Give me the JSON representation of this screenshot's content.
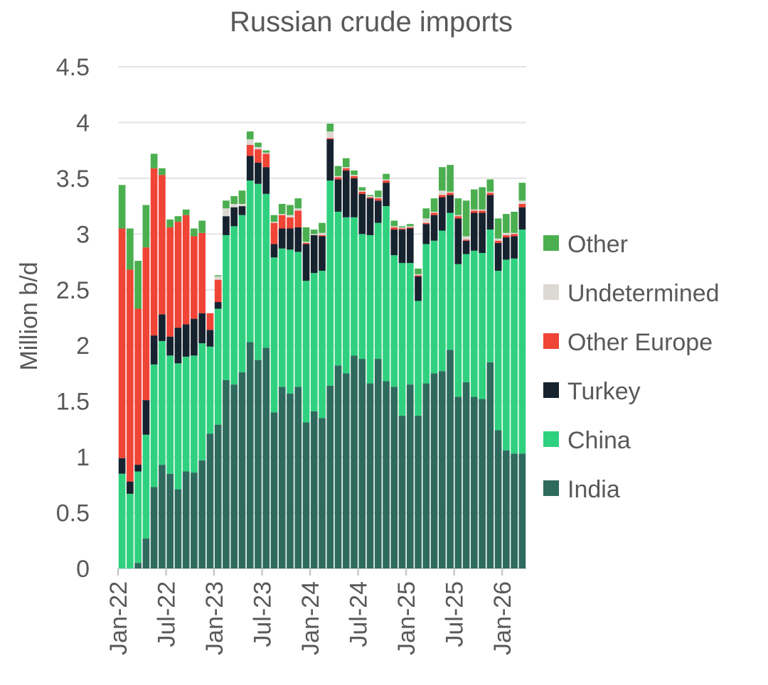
{
  "chart_data": {
    "type": "bar",
    "stacked": true,
    "title": "Russian crude imports",
    "ylabel": "Million b/d",
    "xlabel": "",
    "ylim": [
      0,
      4.5
    ],
    "yticks": [
      "0",
      "0.5",
      "1",
      "1.5",
      "2",
      "2.5",
      "3",
      "3.5",
      "4",
      "4.5"
    ],
    "grid": true,
    "legend_position": "right",
    "x_tick_labels": [
      {
        "index": 0,
        "label": "Jan-22"
      },
      {
        "index": 6,
        "label": "Jul-22"
      },
      {
        "index": 12,
        "label": "Jan-23"
      },
      {
        "index": 18,
        "label": "Jul-23"
      },
      {
        "index": 24,
        "label": "Jan-24"
      },
      {
        "index": 30,
        "label": "Jul-24"
      },
      {
        "index": 36,
        "label": "Jan-25"
      },
      {
        "index": 42,
        "label": "Jul-25"
      },
      {
        "index": 48,
        "label": "Jan-26"
      }
    ],
    "categories": [
      "Jan-22",
      "Feb-22",
      "Mar-22",
      "Apr-22",
      "May-22",
      "Jun-22",
      "Jul-22",
      "Aug-22",
      "Sep-22",
      "Oct-22",
      "Nov-22",
      "Dec-22",
      "Jan-23",
      "Feb-23",
      "Mar-23",
      "Apr-23",
      "May-23",
      "Jun-23",
      "Jul-23",
      "Aug-23",
      "Sep-23",
      "Oct-23",
      "Nov-23",
      "Dec-23",
      "Jan-24",
      "Feb-24",
      "Mar-24",
      "Apr-24",
      "May-24",
      "Jun-24",
      "Jul-24",
      "Aug-24",
      "Sep-24",
      "Oct-24",
      "Nov-24",
      "Dec-24",
      "Jan-25",
      "Feb-25",
      "Mar-25",
      "Apr-25",
      "May-25",
      "Jun-25",
      "Jul-25",
      "Aug-25",
      "Sep-25",
      "Oct-25",
      "Nov-25",
      "Dec-25",
      "Jan-26",
      "Feb-26",
      "Mar-26"
    ],
    "series": [
      {
        "name": "India",
        "color": "#2e6b5e",
        "values": [
          0,
          0,
          0.05,
          0.27,
          0.73,
          0.93,
          0.85,
          0.71,
          0.87,
          0.86,
          0.97,
          1.21,
          1.29,
          1.69,
          1.65,
          1.76,
          2.03,
          1.87,
          1.98,
          1.4,
          1.63,
          1.57,
          1.63,
          1.31,
          1.41,
          1.35,
          1.64,
          1.82,
          1.75,
          1.91,
          1.88,
          1.66,
          1.88,
          1.68,
          1.63,
          1.37,
          1.65,
          1.37,
          1.66,
          1.75,
          1.77,
          1.96,
          1.54,
          1.67,
          1.54,
          1.52,
          1.85,
          1.24,
          1.06,
          1.03,
          1.03
        ]
      },
      {
        "name": "China",
        "color": "#2fd17f",
        "values": [
          0.85,
          0.67,
          0.82,
          0.93,
          1.1,
          1.11,
          1.06,
          1.13,
          1.03,
          1.05,
          1.05,
          0.78,
          1.04,
          1.3,
          1.42,
          1.41,
          1.45,
          1.58,
          1.38,
          1.39,
          1.24,
          1.29,
          1.21,
          1.27,
          1.24,
          1.32,
          1.84,
          1.38,
          1.4,
          1.24,
          1.12,
          1.33,
          1.22,
          1.57,
          1.18,
          1.37,
          1.09,
          1.03,
          1.25,
          1.19,
          1.26,
          1.23,
          1.19,
          1.15,
          1.31,
          1.31,
          1.19,
          1.43,
          1.71,
          1.75,
          2.01
        ]
      },
      {
        "name": "Turkey",
        "color": "#17222f",
        "values": [
          0.14,
          0.11,
          0.06,
          0.31,
          0.26,
          0.24,
          0.17,
          0.32,
          0.29,
          0.33,
          0.27,
          0.15,
          0.06,
          0.17,
          0.17,
          0.08,
          0.22,
          0.19,
          0.24,
          0.12,
          0.18,
          0.19,
          0.22,
          0.33,
          0.34,
          0.31,
          0.37,
          0.29,
          0.42,
          0.35,
          0.36,
          0.33,
          0.2,
          0.21,
          0.23,
          0.3,
          0.31,
          0.22,
          0.18,
          0.23,
          0.3,
          0.16,
          0.41,
          0.12,
          0.34,
          0.36,
          0.31,
          0.25,
          0.2,
          0.2,
          0.2
        ]
      },
      {
        "name": "Other Europe",
        "color": "#f04436",
        "values": [
          2.06,
          1.9,
          1.4,
          1.37,
          1.5,
          1.25,
          0.98,
          0.95,
          0.98,
          0.74,
          0.72,
          0.15,
          0.2,
          0.0,
          0.0,
          0.0,
          0.1,
          0.12,
          0.12,
          0.19,
          0.12,
          0.1,
          0.15,
          0.01,
          0.0,
          0.01,
          0.01,
          0.02,
          0.02,
          0.02,
          0.02,
          0.01,
          0.02,
          0.02,
          0.02,
          0.01,
          0.01,
          0.01,
          0.01,
          0.02,
          0.02,
          0.02,
          0.02,
          0.01,
          0.02,
          0.02,
          0.02,
          0.02,
          0.02,
          0.02,
          0.03
        ]
      },
      {
        "name": "Undetermined",
        "color": "#dcd8d3",
        "values": [
          0,
          0,
          0,
          0,
          0,
          0,
          0,
          0,
          0,
          0,
          0,
          0,
          0.03,
          0.07,
          0.03,
          0.02,
          0.05,
          0.02,
          0.01,
          0.01,
          0.01,
          0.02,
          0.02,
          0.01,
          0.01,
          0.02,
          0.06,
          0.01,
          0.01,
          0.01,
          0.01,
          0.01,
          0.01,
          0.01,
          0.01,
          0.01,
          0.01,
          0.01,
          0.04,
          0.01,
          0.04,
          0.01,
          0.01,
          0.03,
          0.01,
          0.01,
          0.01,
          0.02,
          0.02,
          0.01,
          0.03
        ]
      },
      {
        "name": "Other",
        "color": "#4baf50",
        "values": [
          0.39,
          0.37,
          0.43,
          0.38,
          0.13,
          0.06,
          0.07,
          0.05,
          0.05,
          0.07,
          0.11,
          0.0,
          0.01,
          0.07,
          0.07,
          0.12,
          0.07,
          0.04,
          0.02,
          0.06,
          0.09,
          0.09,
          0.09,
          0.13,
          0.04,
          0.09,
          0.07,
          0.09,
          0.08,
          0.04,
          0.03,
          0.01,
          0.06,
          0.05,
          0.05,
          0.01,
          0.02,
          0.05,
          0.09,
          0.12,
          0.21,
          0.24,
          0.15,
          0.32,
          0.18,
          0.2,
          0.11,
          0.18,
          0.17,
          0.19,
          0.16
        ]
      }
    ]
  }
}
